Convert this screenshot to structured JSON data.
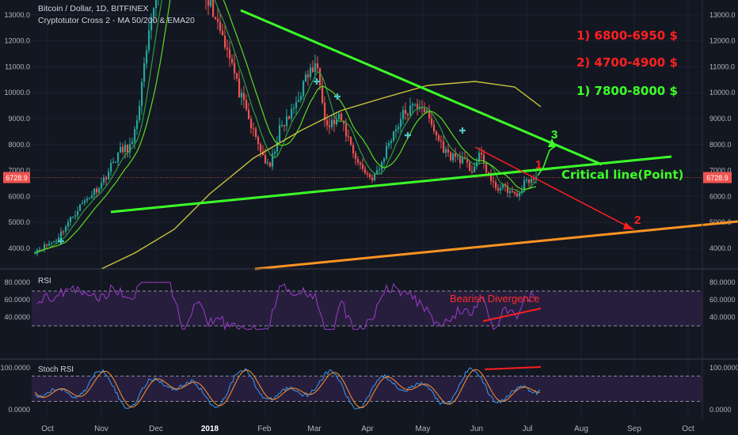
{
  "header": {
    "title": "Bitcoin / Dollar, 1D, BITFINEX",
    "indicator": "Cryptotutor Cross 2 - MA 50/200 & EMA20"
  },
  "colors": {
    "background": "#131722",
    "up_candle": "#26a69a",
    "down_candle": "#ef5350",
    "ma50": "#5bdc1c",
    "ma200": "#c8c43a",
    "ema20": "#2e9e3e",
    "trendline": "#3cff28",
    "support": "#ff9322",
    "projection": "#ff1e1e",
    "rsi_line": "#9c3cc8",
    "indicator_band": "#271e3e",
    "stoch_k": "#3a8fe0",
    "stoch_d": "#f08a2a"
  },
  "annotations": {
    "target1": "1) 6800-6950 $",
    "target2": "2) 4700-4900 $",
    "target3": "1) 7800-8000 $",
    "critical_line": "Critical line(Point)",
    "point1": "1",
    "point2": "2",
    "point3": "3",
    "divergence": "Bearish Divergence"
  },
  "chart_data": [
    {
      "type": "candlestick",
      "title": "Bitcoin / Dollar, 1D, BITFINEX",
      "x": [
        "Oct",
        "Nov",
        "Dec",
        "2018",
        "Feb",
        "Mar",
        "Apr",
        "May",
        "Jun",
        "Jul",
        "Aug",
        "Sep",
        "Oct"
      ],
      "price_axis": [
        "13000.0",
        "12000.0",
        "11000.0",
        "10000.0",
        "9000.0",
        "8000.0",
        "7000.0",
        "6000.0",
        "5000.0",
        "4000.0"
      ],
      "ylim": [
        3450,
        13400
      ],
      "last_price": "6728.9",
      "closes_approx": [
        [
          "Oct",
          4300
        ],
        [
          "Nov",
          6500
        ],
        [
          "Dec",
          10800
        ],
        [
          "2018",
          13900
        ],
        [
          "Feb",
          9100
        ],
        [
          "Mar",
          10400
        ],
        [
          "Apr",
          7000
        ],
        [
          "May",
          9200
        ],
        [
          "Jun",
          7500
        ],
        [
          "Jul",
          6350
        ],
        [
          "Jul",
          6729
        ]
      ],
      "series": [
        {
          "name": "MA 50"
        },
        {
          "name": "MA 200"
        },
        {
          "name": "EMA20"
        }
      ]
    },
    {
      "type": "line",
      "title": "RSI",
      "y_ticks": [
        "80.0000",
        "60.0000",
        "40.0000"
      ],
      "ylim": [
        22,
        82
      ],
      "levels": [
        70,
        30
      ]
    },
    {
      "type": "line",
      "title": "Stoch RSI",
      "y_ticks": [
        "100.0000",
        "0.0000"
      ],
      "ylim": [
        -15,
        103
      ],
      "levels": [
        80,
        20
      ]
    }
  ]
}
